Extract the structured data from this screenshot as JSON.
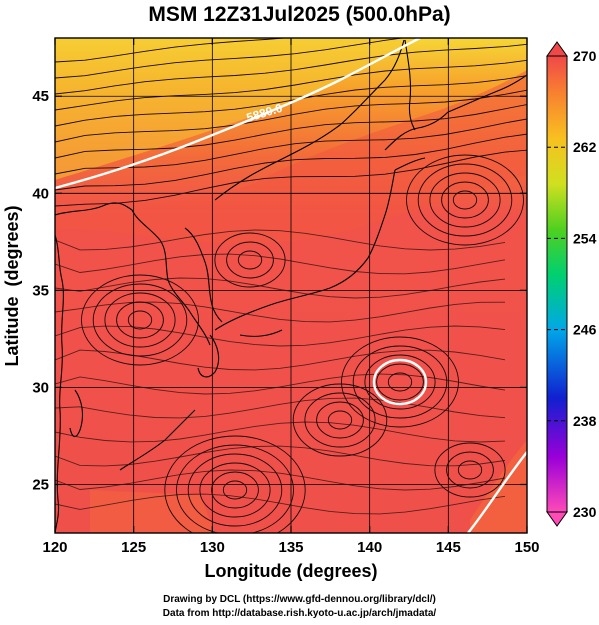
{
  "title": "MSM 12Z31Jul2025 (500.0hPa)",
  "map": {
    "xlabel": "Longitude (degrees)",
    "ylabel": "Latitude  (degrees)",
    "xlim": [
      120,
      150
    ],
    "ylim": [
      22.5,
      48
    ],
    "xticks": [
      "120",
      "125",
      "130",
      "135",
      "140",
      "145",
      "150"
    ],
    "yticks": [
      "25",
      "30",
      "35",
      "40",
      "45"
    ],
    "contour_label": "5880.0",
    "colors": {
      "warm_south": "#f1524a",
      "warm_mid": "#f36b3a",
      "north_orange": "#f7a22b",
      "north_yellow": "#f6d636",
      "coast": "#000000",
      "streamline": "#1a0a0a",
      "contour": "#ffffff"
    }
  },
  "colorbar": {
    "min": 230,
    "max": 270,
    "labels": [
      "270",
      "262",
      "254",
      "246",
      "238",
      "230"
    ]
  },
  "credit": {
    "line1": "Drawing by DCL (https://www.gfd-dennou.org/library/dcl/)",
    "line2": "Data from http://database.rish.kyoto-u.ac.jp/arch/jmadata/"
  }
}
